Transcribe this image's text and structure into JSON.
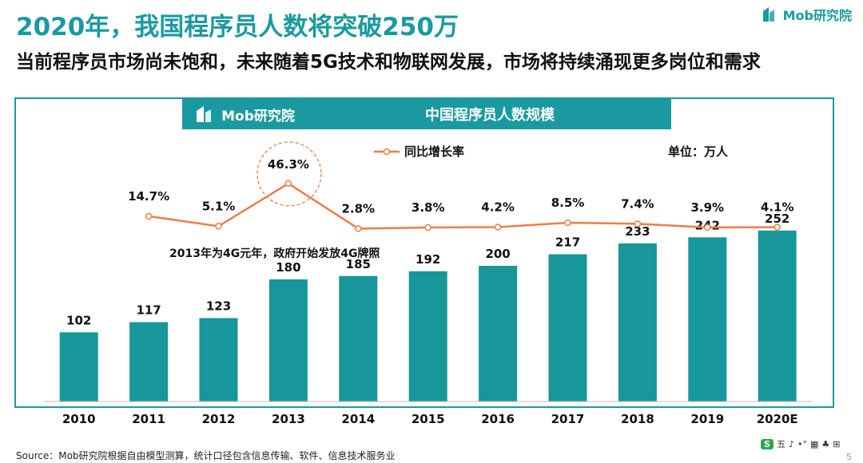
{
  "header": {
    "title": "2020年，我国程序员人数将突破250万",
    "subtitle": "当前程序员市场尚未饱和，未来随着5G技术和物联网发展，市场将持续涌现更多岗位和需求",
    "brand": "Mob研究院"
  },
  "colors": {
    "accent": "#1a9aa0",
    "line": "#ef7d45",
    "bar": "#17979a",
    "text": "#111111"
  },
  "chart_data": {
    "type": "bar",
    "title": "中国程序员人数规模",
    "brand_label": "Mob研究院",
    "unit_label": "单位：万人",
    "categories": [
      "2010",
      "2011",
      "2012",
      "2013",
      "2014",
      "2015",
      "2016",
      "2017",
      "2018",
      "2019",
      "2020E"
    ],
    "values": [
      102,
      117,
      123,
      180,
      185,
      192,
      200,
      217,
      233,
      242,
      252
    ],
    "value_labels": [
      "102",
      "117",
      "123",
      "180",
      "185",
      "192",
      "200",
      "217",
      "233",
      "242",
      "252"
    ],
    "ylim": [
      0,
      300
    ],
    "line_series": {
      "name": "同比增长率",
      "categories": [
        "2011",
        "2012",
        "2013",
        "2014",
        "2015",
        "2016",
        "2017",
        "2018",
        "2019",
        "2020E"
      ],
      "values": [
        14.7,
        5.1,
        46.3,
        2.8,
        3.8,
        4.2,
        8.5,
        7.4,
        3.9,
        4.1
      ],
      "labels": [
        "14.7%",
        "5.1%",
        "46.3%",
        "2.8%",
        "3.8%",
        "4.2%",
        "8.5%",
        "7.4%",
        "3.9%",
        "4.1%"
      ]
    },
    "annotation": "2013年为4G元年，政府开始发放4G牌照",
    "highlight": "2013"
  },
  "footer": {
    "source": "Source：Mob研究院根据自由模型测算，统计口径包含信息传输、软件、信息技术服务业",
    "tools": [
      "S",
      "五",
      "♪",
      "•°",
      "▦",
      "♣",
      "⊞"
    ],
    "page": "5"
  }
}
